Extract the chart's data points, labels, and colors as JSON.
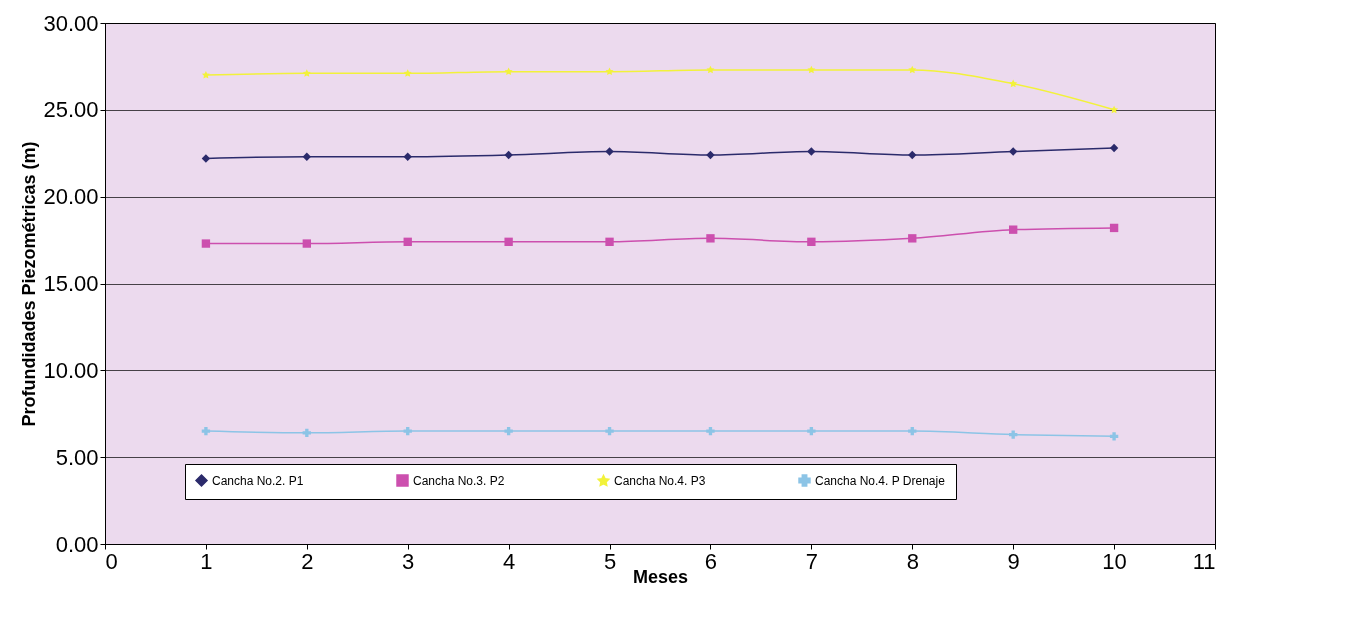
{
  "chart_data": {
    "type": "line",
    "xlabel": "Meses",
    "ylabel": "Profundidades Piezométricas (m)",
    "x": [
      1,
      2,
      3,
      4,
      5,
      6,
      7,
      8,
      9,
      10
    ],
    "xlim": [
      0,
      11
    ],
    "xticks": [
      0,
      1,
      2,
      3,
      4,
      5,
      6,
      7,
      8,
      9,
      10,
      11
    ],
    "ylim": [
      0,
      30
    ],
    "yticks": [
      {
        "value": 0,
        "label": "0.00"
      },
      {
        "value": 5,
        "label": "5.00"
      },
      {
        "value": 10,
        "label": "10.00"
      },
      {
        "value": 15,
        "label": "15.00"
      },
      {
        "value": 20,
        "label": "20.00"
      },
      {
        "value": 25,
        "label": "25.00"
      },
      {
        "value": 30,
        "label": "30.00"
      }
    ],
    "grid": "y",
    "legend": "bottom",
    "series": [
      {
        "name": "Cancha No.2. P1",
        "color": "#2b2a6b",
        "marker": "diamond",
        "values": [
          22.2,
          22.3,
          22.3,
          22.4,
          22.6,
          22.4,
          22.6,
          22.4,
          22.6,
          22.8
        ]
      },
      {
        "name": "Cancha No.3. P2",
        "color": "#cc4fae",
        "marker": "square",
        "values": [
          17.3,
          17.3,
          17.4,
          17.4,
          17.4,
          17.6,
          17.4,
          17.6,
          18.1,
          18.2
        ]
      },
      {
        "name": "Cancha No.4. P3",
        "color": "#f2f23a",
        "marker": "star",
        "values": [
          27.0,
          27.1,
          27.1,
          27.2,
          27.2,
          27.3,
          27.3,
          27.3,
          26.5,
          25.0
        ]
      },
      {
        "name": "Cancha No.4. P Drenaje",
        "color": "#8cc4e6",
        "marker": "cross",
        "values": [
          6.5,
          6.4,
          6.5,
          6.5,
          6.5,
          6.5,
          6.5,
          6.5,
          6.3,
          6.2
        ]
      }
    ]
  }
}
